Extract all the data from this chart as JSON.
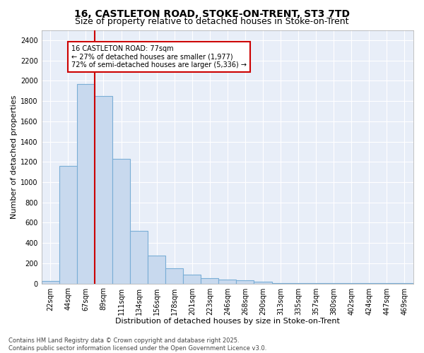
{
  "title_line1": "16, CASTLETON ROAD, STOKE-ON-TRENT, ST3 7TD",
  "title_line2": "Size of property relative to detached houses in Stoke-on-Trent",
  "xlabel": "Distribution of detached houses by size in Stoke-on-Trent",
  "ylabel": "Number of detached properties",
  "bar_color": "#c8d9ee",
  "bar_edge_color": "#7aaed6",
  "categories": [
    "22sqm",
    "44sqm",
    "67sqm",
    "89sqm",
    "111sqm",
    "134sqm",
    "156sqm",
    "178sqm",
    "201sqm",
    "223sqm",
    "246sqm",
    "268sqm",
    "290sqm",
    "313sqm",
    "335sqm",
    "357sqm",
    "380sqm",
    "402sqm",
    "424sqm",
    "447sqm",
    "469sqm"
  ],
  "values": [
    25,
    1160,
    1970,
    1850,
    1230,
    520,
    275,
    150,
    90,
    50,
    40,
    30,
    15,
    5,
    5,
    5,
    5,
    3,
    2,
    2,
    5
  ],
  "ylim": [
    0,
    2500
  ],
  "yticks": [
    0,
    200,
    400,
    600,
    800,
    1000,
    1200,
    1400,
    1600,
    1800,
    2000,
    2200,
    2400
  ],
  "vline_color": "#cc0000",
  "vline_index": 2,
  "annotation_text": "16 CASTLETON ROAD: 77sqm\n← 27% of detached houses are smaller (1,977)\n72% of semi-detached houses are larger (5,336) →",
  "annotation_box_color": "#ffffff",
  "annotation_box_edge": "#cc0000",
  "footnote": "Contains HM Land Registry data © Crown copyright and database right 2025.\nContains public sector information licensed under the Open Government Licence v3.0.",
  "fig_bg_color": "#ffffff",
  "plot_bg_color": "#e8eef8",
  "grid_color": "#ffffff",
  "title_fontsize": 10,
  "subtitle_fontsize": 9,
  "tick_fontsize": 7,
  "xlabel_fontsize": 8,
  "ylabel_fontsize": 8,
  "annot_fontsize": 7,
  "footnote_fontsize": 6
}
